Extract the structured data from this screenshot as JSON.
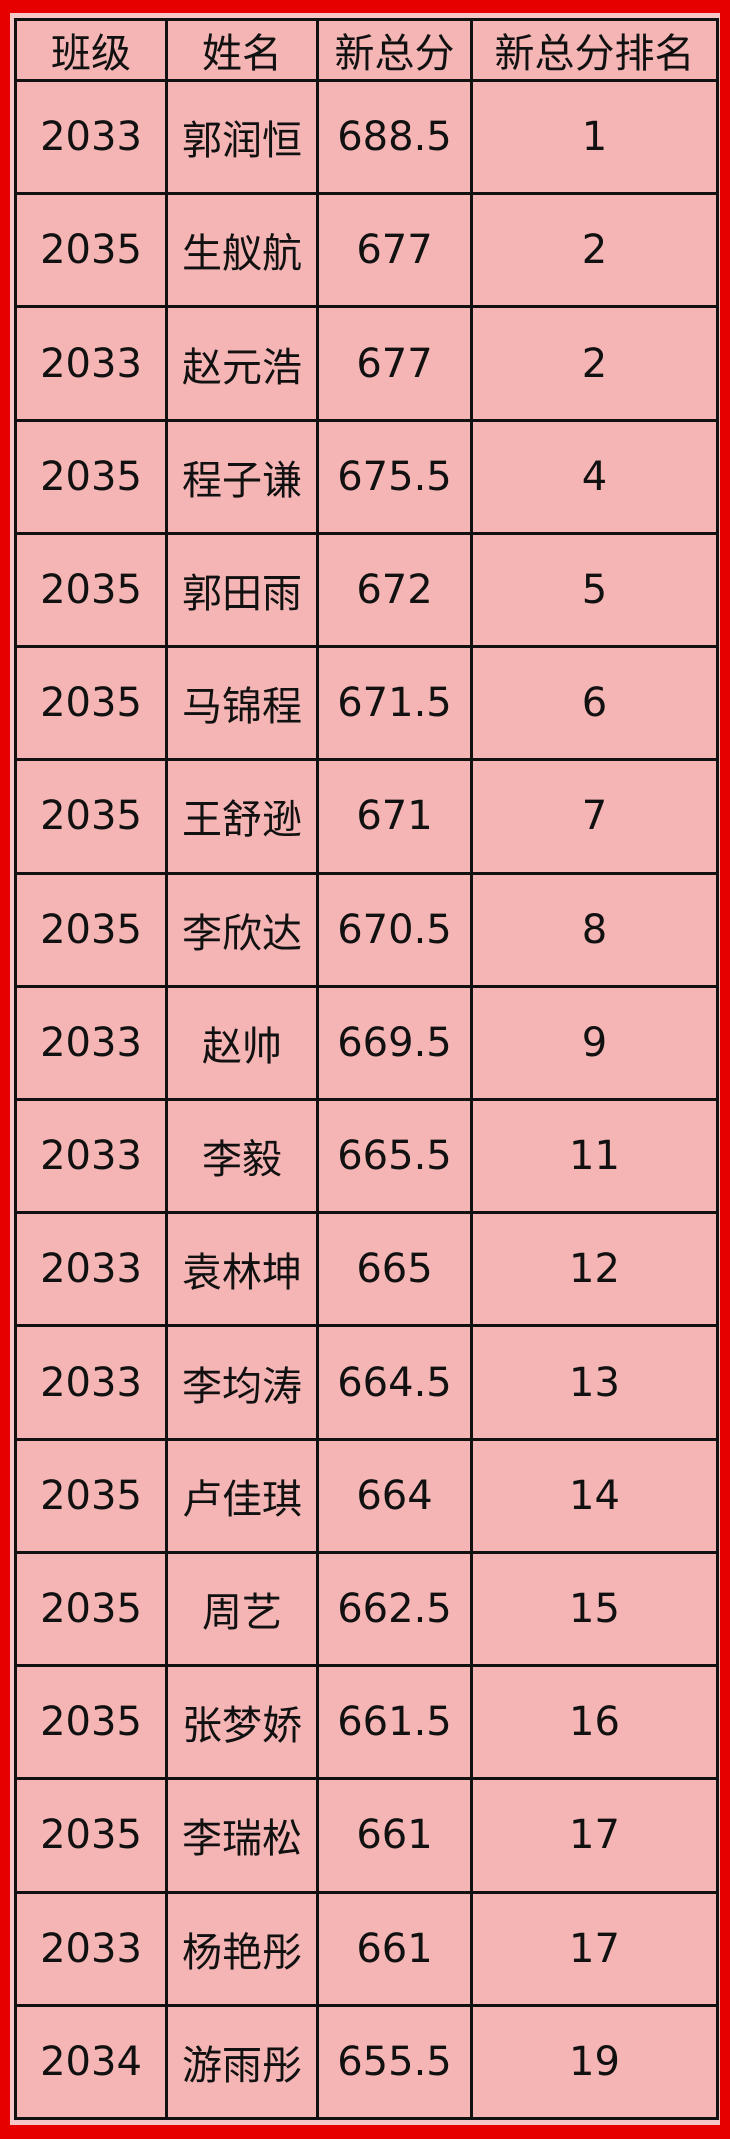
{
  "colors": {
    "frame": "#e60000",
    "cell": "#f5b5b5",
    "grid": "#111111"
  },
  "headers": [
    "班级",
    "姓名",
    "新总分",
    "新总分排名"
  ],
  "rows": [
    [
      "2033",
      "郭润恒",
      "688.5",
      "1"
    ],
    [
      "2035",
      "生舣航",
      "677",
      "2"
    ],
    [
      "2033",
      "赵元浩",
      "677",
      "2"
    ],
    [
      "2035",
      "程子谦",
      "675.5",
      "4"
    ],
    [
      "2035",
      "郭田雨",
      "672",
      "5"
    ],
    [
      "2035",
      "马锦程",
      "671.5",
      "6"
    ],
    [
      "2035",
      "王舒逊",
      "671",
      "7"
    ],
    [
      "2035",
      "李欣达",
      "670.5",
      "8"
    ],
    [
      "2033",
      "赵帅",
      "669.5",
      "9"
    ],
    [
      "2033",
      "李毅",
      "665.5",
      "11"
    ],
    [
      "2033",
      "袁林坤",
      "665",
      "12"
    ],
    [
      "2033",
      "李均涛",
      "664.5",
      "13"
    ],
    [
      "2035",
      "卢佳琪",
      "664",
      "14"
    ],
    [
      "2035",
      "周艺",
      "662.5",
      "15"
    ],
    [
      "2035",
      "张梦娇",
      "661.5",
      "16"
    ],
    [
      "2035",
      "李瑞松",
      "661",
      "17"
    ],
    [
      "2033",
      "杨艳彤",
      "661",
      "17"
    ],
    [
      "2034",
      "游雨彤",
      "655.5",
      "19"
    ]
  ]
}
